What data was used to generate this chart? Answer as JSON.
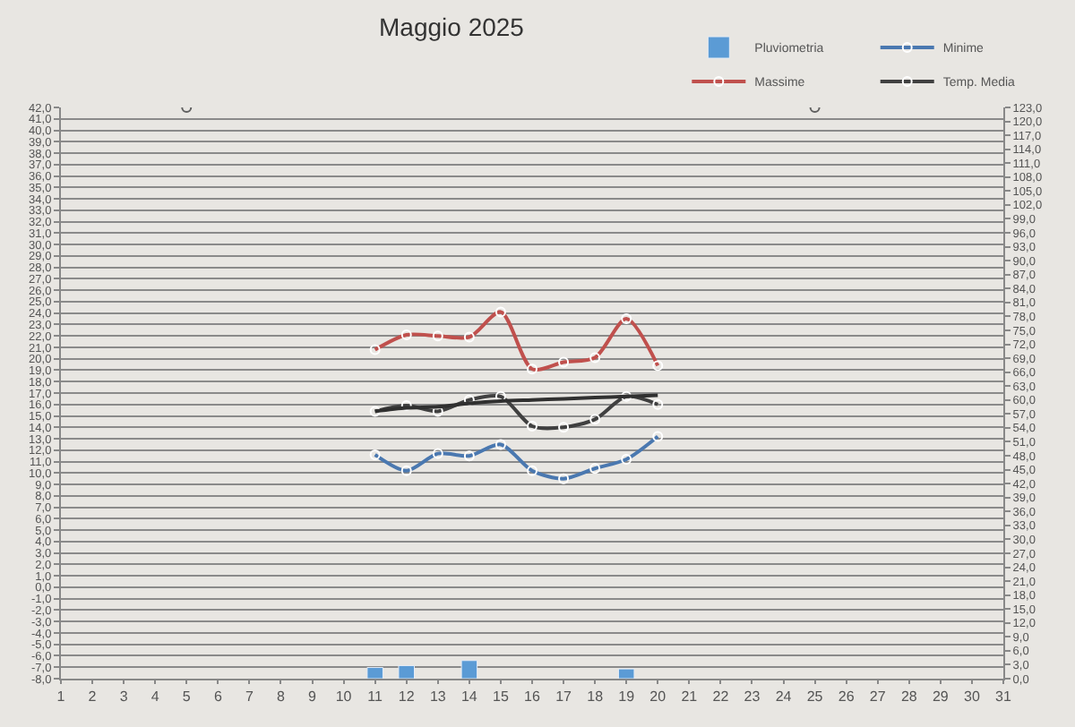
{
  "chart_data": {
    "type": "line",
    "title": "Maggio 2025",
    "x": [
      11,
      12,
      13,
      14,
      15,
      16,
      17,
      18,
      19,
      20
    ],
    "series": [
      {
        "name": "Pluviometria",
        "type": "bar",
        "axis": "y2",
        "color": "#5b9bd5",
        "x": [
          11,
          12,
          14,
          19
        ],
        "values": [
          2.4,
          2.8,
          3.9,
          2.1
        ]
      },
      {
        "name": "Minime",
        "color": "#4a78b0",
        "values": [
          11.6,
          10.2,
          11.7,
          11.5,
          12.5,
          10.2,
          9.5,
          10.4,
          11.2,
          13.2
        ]
      },
      {
        "name": "Massime",
        "color": "#c0504d",
        "values": [
          20.8,
          22.1,
          22.0,
          21.9,
          24.1,
          19.1,
          19.7,
          20.1,
          23.5,
          19.4
        ]
      },
      {
        "name": "Temp. Media",
        "color": "#404040",
        "values": [
          15.4,
          15.9,
          15.4,
          16.4,
          16.7,
          14.1,
          14.0,
          14.7,
          16.7,
          16.0
        ]
      },
      {
        "color": "#303030",
        "marker": "none",
        "values": [
          15.4,
          15.7,
          15.8,
          16.1,
          16.3,
          16.4,
          16.5,
          16.6,
          16.7,
          16.8
        ]
      },
      {
        "type": "scatter",
        "color": "#606060",
        "x": [
          5,
          25
        ],
        "values": [
          42,
          42
        ]
      }
    ],
    "marker": "circle",
    "line_style": "solid",
    "grid": "y",
    "legend": "top right",
    "xlim": [
      1,
      31
    ],
    "xticks": [
      1,
      2,
      3,
      4,
      5,
      6,
      7,
      8,
      9,
      10,
      11,
      12,
      13,
      14,
      15,
      16,
      17,
      18,
      19,
      20,
      21,
      22,
      23,
      24,
      25,
      26,
      27,
      28,
      29,
      30,
      31
    ],
    "ylim": [
      -8,
      42
    ],
    "yticks": [
      {
        "value": -8,
        "label": "-8,0"
      },
      {
        "value": -7,
        "label": "-7,0"
      },
      {
        "value": -6,
        "label": "-6,0"
      },
      {
        "value": -5,
        "label": "-5,0"
      },
      {
        "value": -4,
        "label": "-4,0"
      },
      {
        "value": -3,
        "label": "-3,0"
      },
      {
        "value": -2,
        "label": "-2,0"
      },
      {
        "value": -1,
        "label": "-1,0"
      },
      {
        "value": 0,
        "label": "0,0"
      },
      {
        "value": 1,
        "label": "1,0"
      },
      {
        "value": 2,
        "label": "2,0"
      },
      {
        "value": 3,
        "label": "3,0"
      },
      {
        "value": 4,
        "label": "4,0"
      },
      {
        "value": 5,
        "label": "5,0"
      },
      {
        "value": 6,
        "label": "6,0"
      },
      {
        "value": 7,
        "label": "7,0"
      },
      {
        "value": 8,
        "label": "8,0"
      },
      {
        "value": 9,
        "label": "9,0"
      },
      {
        "value": 10,
        "label": "10,0"
      },
      {
        "value": 11,
        "label": "11,0"
      },
      {
        "value": 12,
        "label": "12,0"
      },
      {
        "value": 13,
        "label": "13,0"
      },
      {
        "value": 14,
        "label": "14,0"
      },
      {
        "value": 15,
        "label": "15,0"
      },
      {
        "value": 16,
        "label": "16,0"
      },
      {
        "value": 17,
        "label": "17,0"
      },
      {
        "value": 18,
        "label": "18,0"
      },
      {
        "value": 19,
        "label": "19,0"
      },
      {
        "value": 20,
        "label": "20,0"
      },
      {
        "value": 21,
        "label": "21,0"
      },
      {
        "value": 22,
        "label": "22,0"
      },
      {
        "value": 23,
        "label": "23,0"
      },
      {
        "value": 24,
        "label": "24,0"
      },
      {
        "value": 25,
        "label": "25,0"
      },
      {
        "value": 26,
        "label": "26,0"
      },
      {
        "value": 27,
        "label": "27,0"
      },
      {
        "value": 28,
        "label": "28,0"
      },
      {
        "value": 29,
        "label": "29,0"
      },
      {
        "value": 30,
        "label": "30,0"
      },
      {
        "value": 31,
        "label": "31,0"
      },
      {
        "value": 32,
        "label": "32,0"
      },
      {
        "value": 33,
        "label": "33,0"
      },
      {
        "value": 34,
        "label": "34,0"
      },
      {
        "value": 35,
        "label": "35,0"
      },
      {
        "value": 36,
        "label": "36,0"
      },
      {
        "value": 37,
        "label": "37,0"
      },
      {
        "value": 38,
        "label": "38,0"
      },
      {
        "value": 39,
        "label": "39,0"
      },
      {
        "value": 40,
        "label": "40,0"
      },
      {
        "value": 41,
        "label": "41,0"
      },
      {
        "value": 42,
        "label": "42,0"
      }
    ],
    "y2lim": [
      0,
      123
    ],
    "y2ticks": [
      {
        "value": 0,
        "label": "0,0"
      },
      {
        "value": 3,
        "label": "3,0"
      },
      {
        "value": 6,
        "label": "6,0"
      },
      {
        "value": 9,
        "label": "9,0"
      },
      {
        "value": 12,
        "label": "12,0"
      },
      {
        "value": 15,
        "label": "15,0"
      },
      {
        "value": 18,
        "label": "18,0"
      },
      {
        "value": 21,
        "label": "21,0"
      },
      {
        "value": 24,
        "label": "24,0"
      },
      {
        "value": 27,
        "label": "27,0"
      },
      {
        "value": 30,
        "label": "30,0"
      },
      {
        "value": 33,
        "label": "33,0"
      },
      {
        "value": 36,
        "label": "36,0"
      },
      {
        "value": 39,
        "label": "39,0"
      },
      {
        "value": 42,
        "label": "42,0"
      },
      {
        "value": 45,
        "label": "45,0"
      },
      {
        "value": 48,
        "label": "48,0"
      },
      {
        "value": 51,
        "label": "51,0"
      },
      {
        "value": 54,
        "label": "54,0"
      },
      {
        "value": 57,
        "label": "57,0"
      },
      {
        "value": 60,
        "label": "60,0"
      },
      {
        "value": 63,
        "label": "63,0"
      },
      {
        "value": 66,
        "label": "66,0"
      },
      {
        "value": 69,
        "label": "69,0"
      },
      {
        "value": 72,
        "label": "72,0"
      },
      {
        "value": 75,
        "label": "75,0"
      },
      {
        "value": 78,
        "label": "78,0"
      },
      {
        "value": 81,
        "label": "81,0"
      },
      {
        "value": 84,
        "label": "84,0"
      },
      {
        "value": 87,
        "label": "87,0"
      },
      {
        "value": 90,
        "label": "90,0"
      },
      {
        "value": 93,
        "label": "93,0"
      },
      {
        "value": 96,
        "label": "96,0"
      },
      {
        "value": 99,
        "label": "99,0"
      },
      {
        "value": 102,
        "label": "102,0"
      },
      {
        "value": 105,
        "label": "105,0"
      },
      {
        "value": 108,
        "label": "108,0"
      },
      {
        "value": 111,
        "label": "111,0"
      },
      {
        "value": 114,
        "label": "114,0"
      },
      {
        "value": 117,
        "label": "117,0"
      },
      {
        "value": 120,
        "label": "120,0"
      },
      {
        "value": 123,
        "label": "123,0"
      }
    ]
  }
}
